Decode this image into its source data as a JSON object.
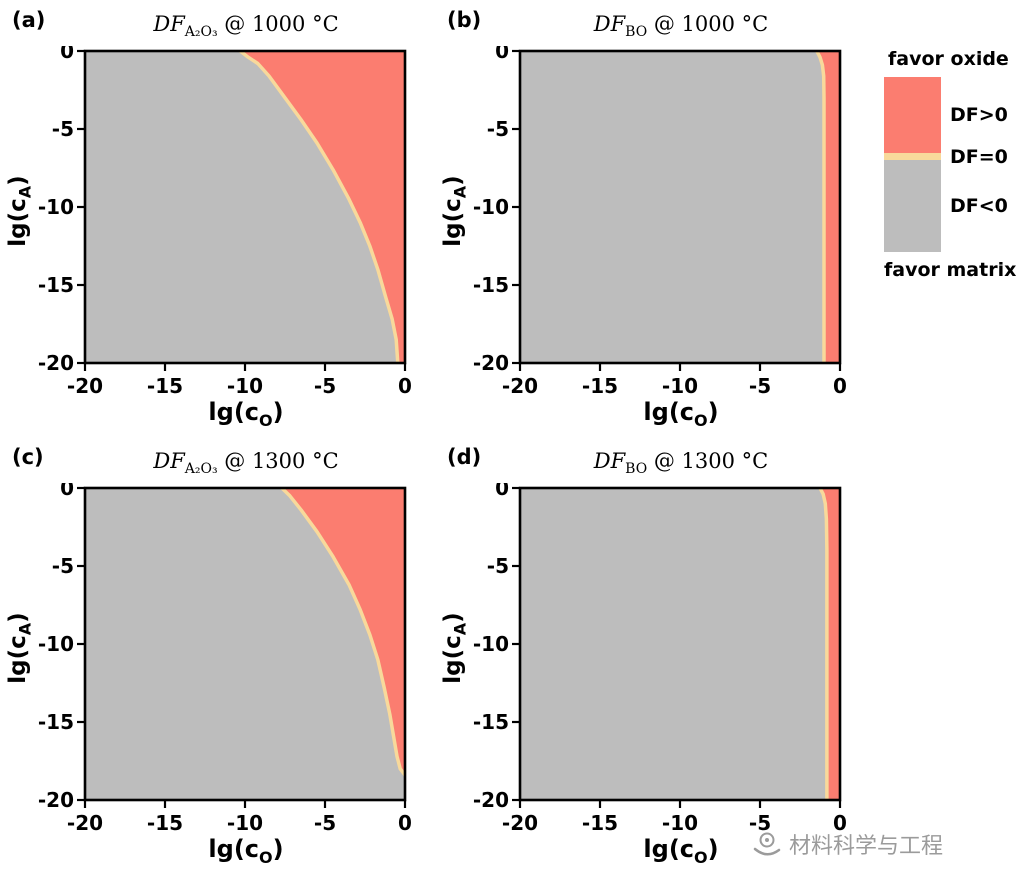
{
  "figure": {
    "watermark_text": "材料科学与工程"
  },
  "colors": {
    "oxide": "#fb7d70",
    "matrix": "#bdbdbd",
    "boundary": "#f8d99b",
    "frame": "#000000",
    "watermark": "#9b9b9b"
  },
  "axes": {
    "x_prefix": "lg(c",
    "x_sub": "O",
    "x_suffix": ")",
    "y_prefix": "lg(c",
    "y_sub": "A",
    "y_suffix": ")"
  },
  "legend": {
    "favor_oxide": "favor oxide",
    "df_positive": "DF>0",
    "df_zero": "DF=0",
    "df_negative": "DF<0",
    "favor_matrix": "favor matrix"
  },
  "chart_data": [
    {
      "type": "area",
      "panel": "(a)",
      "title_italic": "DF",
      "title_sub": "A₂O₃",
      "title_rest": " @ 1000 °C",
      "xlabel": "lg(c_O)",
      "ylabel": "lg(c_A)",
      "xlim": [
        -20,
        0
      ],
      "ylim": [
        -20,
        0
      ],
      "xticks": [
        -20,
        -15,
        -10,
        -5,
        0
      ],
      "yticks": [
        0,
        -5,
        -10,
        -15,
        -20
      ],
      "region_right_of_boundary": "DF>0 (favor oxide, red)",
      "region_left_of_boundary": "DF<0 (favor matrix, gray)",
      "boundary_df0": [
        [
          -10.3,
          0
        ],
        [
          -9.8,
          -0.4
        ],
        [
          -9.2,
          -0.8
        ],
        [
          -8.5,
          -1.6
        ],
        [
          -7.5,
          -3.0
        ],
        [
          -6.5,
          -4.4
        ],
        [
          -5.5,
          -5.9
        ],
        [
          -4.5,
          -7.6
        ],
        [
          -3.5,
          -9.5
        ],
        [
          -2.8,
          -11.0
        ],
        [
          -2.2,
          -12.5
        ],
        [
          -1.7,
          -14.0
        ],
        [
          -1.2,
          -15.8
        ],
        [
          -0.8,
          -17.2
        ],
        [
          -0.55,
          -18.5
        ],
        [
          -0.45,
          -20
        ]
      ]
    },
    {
      "type": "area",
      "panel": "(b)",
      "title_italic": "DF",
      "title_sub": "BO",
      "title_rest": " @ 1000 °C",
      "xlabel": "lg(c_O)",
      "ylabel": "lg(c_A)",
      "xlim": [
        -20,
        0
      ],
      "ylim": [
        -20,
        0
      ],
      "xticks": [
        -20,
        -15,
        -10,
        -5,
        0
      ],
      "yticks": [
        0,
        -5,
        -10,
        -15,
        -20
      ],
      "region_right_of_boundary": "DF>0 (favor oxide, red)",
      "region_left_of_boundary": "DF<0 (favor matrix, gray)",
      "boundary_df0": [
        [
          -1.45,
          0
        ],
        [
          -1.25,
          -0.4
        ],
        [
          -1.1,
          -0.9
        ],
        [
          -1.02,
          -1.6
        ],
        [
          -1.0,
          -3
        ],
        [
          -1.0,
          -20
        ]
      ]
    },
    {
      "type": "area",
      "panel": "(c)",
      "title_italic": "DF",
      "title_sub": "A₂O₃",
      "title_rest": " @ 1300 °C",
      "xlabel": "lg(c_O)",
      "ylabel": "lg(c_A)",
      "xlim": [
        -20,
        0
      ],
      "ylim": [
        -20,
        0
      ],
      "xticks": [
        -20,
        -15,
        -10,
        -5,
        0
      ],
      "yticks": [
        0,
        -5,
        -10,
        -15,
        -20
      ],
      "region_right_of_boundary": "DF>0 (favor oxide, red)",
      "region_left_of_boundary": "DF<0 (favor matrix, gray)",
      "boundary_df0": [
        [
          -7.7,
          0
        ],
        [
          -7.2,
          -0.5
        ],
        [
          -6.5,
          -1.4
        ],
        [
          -5.5,
          -2.8
        ],
        [
          -4.5,
          -4.4
        ],
        [
          -3.5,
          -6.2
        ],
        [
          -2.8,
          -7.8
        ],
        [
          -2.2,
          -9.4
        ],
        [
          -1.7,
          -11.0
        ],
        [
          -1.3,
          -12.8
        ],
        [
          -0.95,
          -14.5
        ],
        [
          -0.7,
          -16.0
        ],
        [
          -0.5,
          -17.2
        ],
        [
          -0.3,
          -18.0
        ],
        [
          0,
          -18.4
        ]
      ]
    },
    {
      "type": "area",
      "panel": "(d)",
      "title_italic": "DF",
      "title_sub": "BO",
      "title_rest": " @ 1300 °C",
      "xlabel": "lg(c_O)",
      "ylabel": "lg(c_A)",
      "xlim": [
        -20,
        0
      ],
      "ylim": [
        -20,
        0
      ],
      "xticks": [
        -20,
        -15,
        -10,
        -5,
        0
      ],
      "yticks": [
        0,
        -5,
        -10,
        -15,
        -20
      ],
      "region_right_of_boundary": "DF>0 (favor oxide, red)",
      "region_left_of_boundary": "DF<0 (favor matrix, gray)",
      "boundary_df0": [
        [
          -1.25,
          0
        ],
        [
          -1.05,
          -0.4
        ],
        [
          -0.92,
          -1.0
        ],
        [
          -0.85,
          -2
        ],
        [
          -0.82,
          -4
        ],
        [
          -0.82,
          -20
        ]
      ]
    }
  ]
}
